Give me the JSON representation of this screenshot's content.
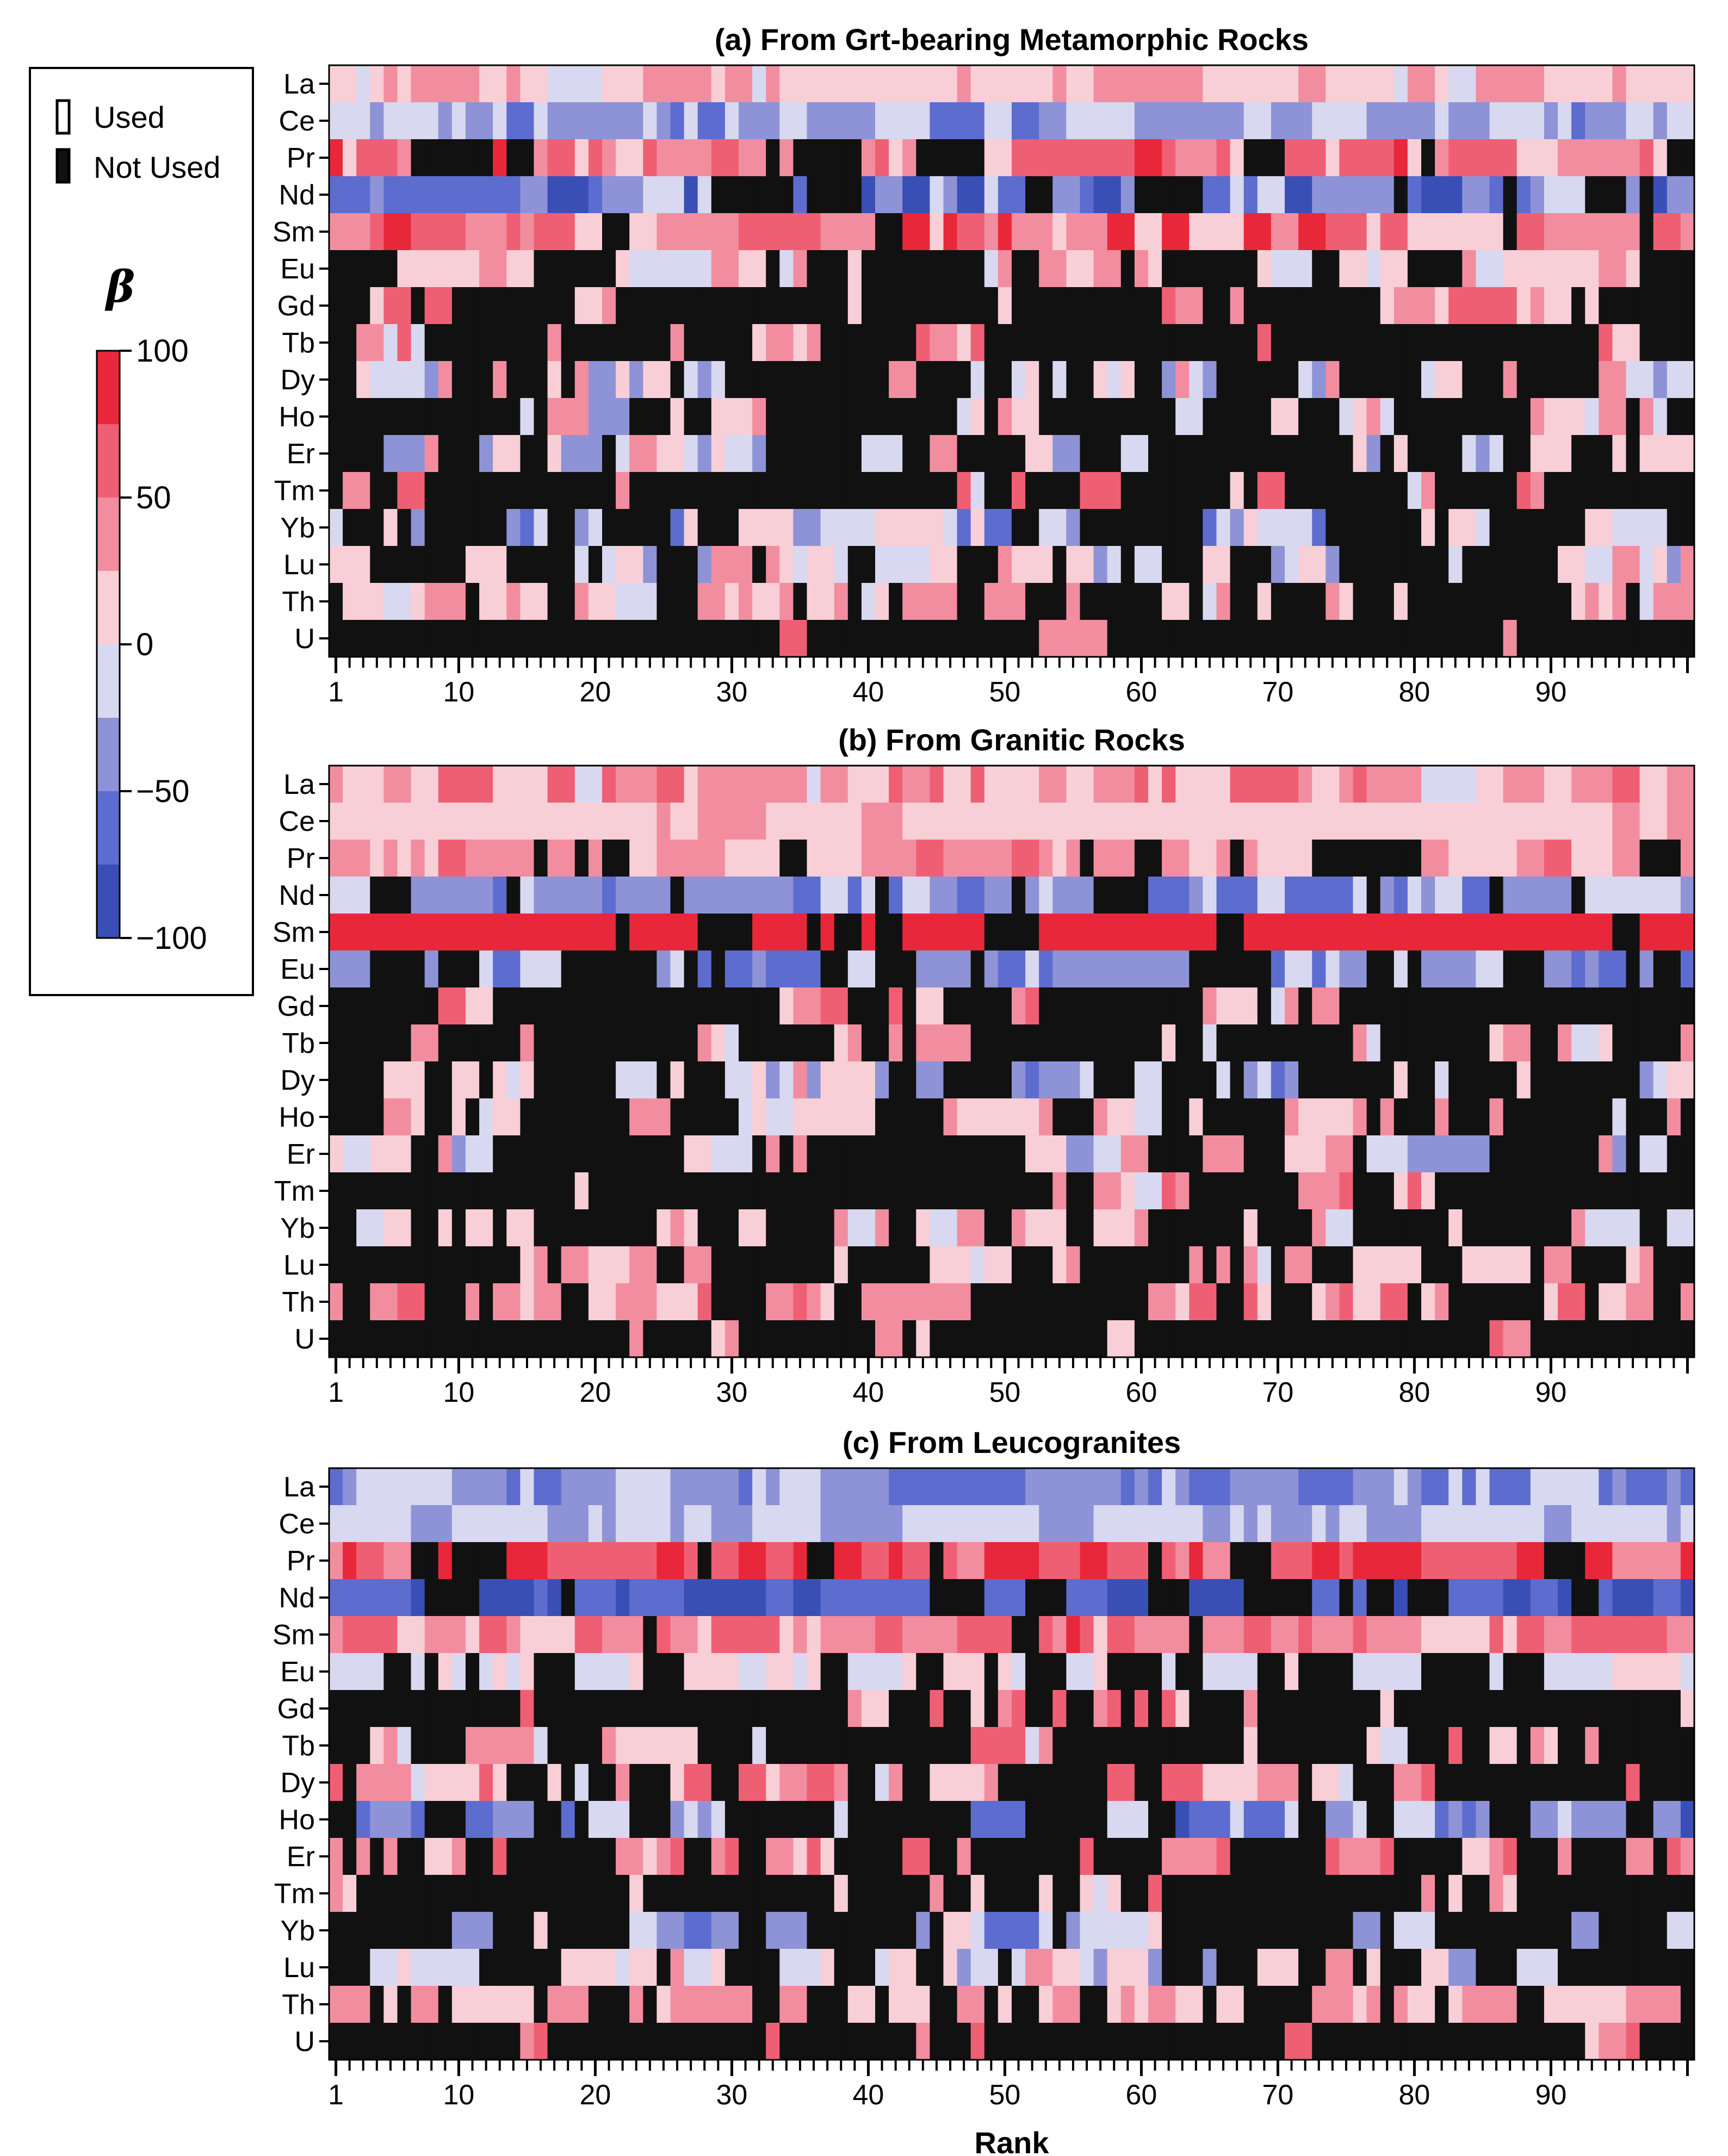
{
  "palette": {
    "neg100": "#3a4fb5",
    "neg75": "#5d6ccf",
    "neg50": "#8d93d6",
    "neg25": "#d8d8f0",
    "pos25": "#f8cfd6",
    "pos50": "#f28da0",
    "pos75": "#ef5f73",
    "pos100": "#e8283a",
    "not_used": "#111111",
    "used_outline": "#000000"
  },
  "legend": {
    "used_label": "Used",
    "not_used_label": "Not Used",
    "beta_label": "β",
    "colorbar_ticks": [
      {
        "value": 100,
        "label": "100"
      },
      {
        "value": 50,
        "label": "50"
      },
      {
        "value": 0,
        "label": "0"
      },
      {
        "value": -50,
        "label": "−50"
      },
      {
        "value": -100,
        "label": "−100"
      }
    ]
  },
  "chart_data": [
    {
      "type": "heatmap",
      "title": "(a) From Grt-bearing Metamorphic Rocks",
      "xlabel": "",
      "x": {
        "min": 1,
        "max": 100,
        "tick_labels": [
          1,
          10,
          20,
          30,
          40,
          50,
          60,
          70,
          80,
          90
        ]
      },
      "rows": [
        "La",
        "Ce",
        "Pr",
        "Nd",
        "Sm",
        "Eu",
        "Gd",
        "Tb",
        "Dy",
        "Ho",
        "Er",
        "Tm",
        "Yb",
        "Lu",
        "Th",
        "U"
      ],
      "row_patterns": [
        {
          "usage": 1.0,
          "mean": 20,
          "amp": 25
        },
        {
          "usage": 1.0,
          "mean": -35,
          "amp": 25
        },
        {
          "usage": 0.8,
          "mean": 45,
          "amp": 35
        },
        {
          "usage": 0.8,
          "mean": -55,
          "amp": 35
        },
        {
          "usage": 0.95,
          "mean": 50,
          "amp": 40
        },
        {
          "usage": 0.55,
          "mean": 10,
          "amp": 30
        },
        {
          "usage": 0.2,
          "mean": 35,
          "amp": 35
        },
        {
          "usage": 0.22,
          "mean": 30,
          "amp": 40
        },
        {
          "usage": 0.4,
          "mean": 5,
          "amp": 40
        },
        {
          "usage": 0.35,
          "mean": 5,
          "amp": 40
        },
        {
          "usage": 0.45,
          "mean": -5,
          "amp": 40
        },
        {
          "usage": 0.18,
          "mean": 30,
          "amp": 40
        },
        {
          "usage": 0.45,
          "mean": -15,
          "amp": 40
        },
        {
          "usage": 0.5,
          "mean": 0,
          "amp": 35
        },
        {
          "usage": 0.55,
          "mean": 20,
          "amp": 25
        },
        {
          "usage": 0.06,
          "mean": 40,
          "amp": 30
        }
      ]
    },
    {
      "type": "heatmap",
      "title": "(b) From Granitic Rocks",
      "xlabel": "",
      "x": {
        "min": 1,
        "max": 100,
        "tick_labels": [
          1,
          10,
          20,
          30,
          40,
          50,
          60,
          70,
          80,
          90
        ]
      },
      "rows": [
        "La",
        "Ce",
        "Pr",
        "Nd",
        "Sm",
        "Eu",
        "Gd",
        "Tb",
        "Dy",
        "Ho",
        "Er",
        "Tm",
        "Yb",
        "Lu",
        "Th",
        "U"
      ],
      "row_patterns": [
        {
          "usage": 1.0,
          "mean": 30,
          "amp": 35
        },
        {
          "usage": 1.0,
          "mean": 15,
          "amp": 15
        },
        {
          "usage": 0.78,
          "mean": 35,
          "amp": 25
        },
        {
          "usage": 0.78,
          "mean": -40,
          "amp": 35
        },
        {
          "usage": 0.85,
          "mean": 88,
          "amp": 12
        },
        {
          "usage": 0.6,
          "mean": -40,
          "amp": 30
        },
        {
          "usage": 0.18,
          "mean": 25,
          "amp": 30
        },
        {
          "usage": 0.22,
          "mean": 20,
          "amp": 30
        },
        {
          "usage": 0.4,
          "mean": -10,
          "amp": 45
        },
        {
          "usage": 0.4,
          "mean": 25,
          "amp": 30
        },
        {
          "usage": 0.45,
          "mean": 5,
          "amp": 40
        },
        {
          "usage": 0.22,
          "mean": 30,
          "amp": 35
        },
        {
          "usage": 0.45,
          "mean": 5,
          "amp": 35
        },
        {
          "usage": 0.5,
          "mean": 20,
          "amp": 25
        },
        {
          "usage": 0.6,
          "mean": 35,
          "amp": 25
        },
        {
          "usage": 0.05,
          "mean": 35,
          "amp": 25
        }
      ]
    },
    {
      "type": "heatmap",
      "title": "(c) From Leucogranites",
      "xlabel": "Rank",
      "x": {
        "min": 1,
        "max": 100,
        "tick_labels": [
          1,
          10,
          20,
          30,
          40,
          50,
          60,
          70,
          80,
          90
        ]
      },
      "rows": [
        "La",
        "Ce",
        "Pr",
        "Nd",
        "Sm",
        "Eu",
        "Gd",
        "Tb",
        "Dy",
        "Ho",
        "Er",
        "Tm",
        "Yb",
        "Lu",
        "Th",
        "U"
      ],
      "row_patterns": [
        {
          "usage": 1.0,
          "mean": -45,
          "amp": 30
        },
        {
          "usage": 1.0,
          "mean": -20,
          "amp": 15
        },
        {
          "usage": 0.82,
          "mean": 70,
          "amp": 25
        },
        {
          "usage": 0.8,
          "mean": -75,
          "amp": 25
        },
        {
          "usage": 0.92,
          "mean": 45,
          "amp": 35
        },
        {
          "usage": 0.55,
          "mean": 5,
          "amp": 30
        },
        {
          "usage": 0.18,
          "mean": 35,
          "amp": 35
        },
        {
          "usage": 0.25,
          "mean": 25,
          "amp": 35
        },
        {
          "usage": 0.45,
          "mean": 30,
          "amp": 35
        },
        {
          "usage": 0.45,
          "mean": -45,
          "amp": 35
        },
        {
          "usage": 0.55,
          "mean": 40,
          "amp": 25
        },
        {
          "usage": 0.2,
          "mean": 25,
          "amp": 35
        },
        {
          "usage": 0.45,
          "mean": -30,
          "amp": 35
        },
        {
          "usage": 0.5,
          "mean": 0,
          "amp": 30
        },
        {
          "usage": 0.6,
          "mean": 20,
          "amp": 20
        },
        {
          "usage": 0.06,
          "mean": 45,
          "amp": 30
        }
      ]
    }
  ]
}
